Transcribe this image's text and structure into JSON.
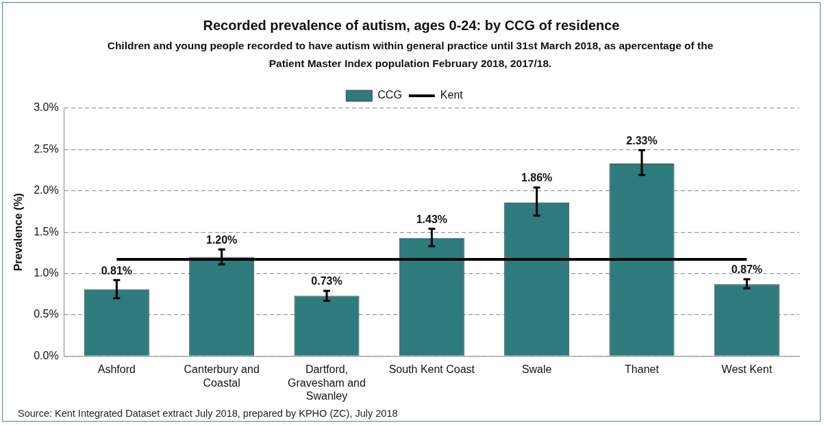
{
  "chart_data": {
    "type": "bar",
    "title": "Recorded prevalence of autism, ages 0-24: by CCG of residence",
    "subtitle": "Children and young people recorded to have autism within general practice until 31st March 2018, as apercentage of the Patient Master Index population  February 2018, 2017/18.",
    "ylabel": "Prevalence (%)",
    "categories": [
      "Ashford",
      "Canterbury and Coastal",
      "Dartford, Gravesham and Swanley",
      "South Kent Coast",
      "Swale",
      "Thanet",
      "West Kent"
    ],
    "series": [
      {
        "name": "CCG",
        "color": "#2e7b7e",
        "values": [
          0.81,
          1.2,
          0.73,
          1.43,
          1.86,
          2.33,
          0.87
        ],
        "errors": [
          [
            0.7,
            0.92
          ],
          [
            1.11,
            1.29
          ],
          [
            0.67,
            0.79
          ],
          [
            1.33,
            1.54
          ],
          [
            1.7,
            2.04
          ],
          [
            2.19,
            2.49
          ],
          [
            0.82,
            0.93
          ]
        ],
        "value_labels": [
          "0.81%",
          "1.20%",
          "0.73%",
          "1.43%",
          "1.86%",
          "2.33%",
          "0.87%"
        ]
      },
      {
        "name": "Kent",
        "type": "line",
        "color": "#000000",
        "values": [
          1.17,
          1.17,
          1.17,
          1.17,
          1.17,
          1.17,
          1.17
        ]
      }
    ],
    "ylim": [
      0,
      3
    ],
    "yticks": [
      {
        "value": 0,
        "label": "0.0%"
      },
      {
        "value": 0.5,
        "label": "0.5%"
      },
      {
        "value": 1,
        "label": "1.0%"
      },
      {
        "value": 1.5,
        "label": "1.5%"
      },
      {
        "value": 2,
        "label": "2.0%"
      },
      {
        "value": 2.5,
        "label": "2.5%"
      },
      {
        "value": 3,
        "label": "3.0%"
      }
    ],
    "grid": "y",
    "legend": "top",
    "marker": "none",
    "line_style": "solid",
    "annotations": [
      "Source: Kent Integrated Dataset extract July 2018, prepared by KPHO (ZC), July 2018"
    ]
  }
}
